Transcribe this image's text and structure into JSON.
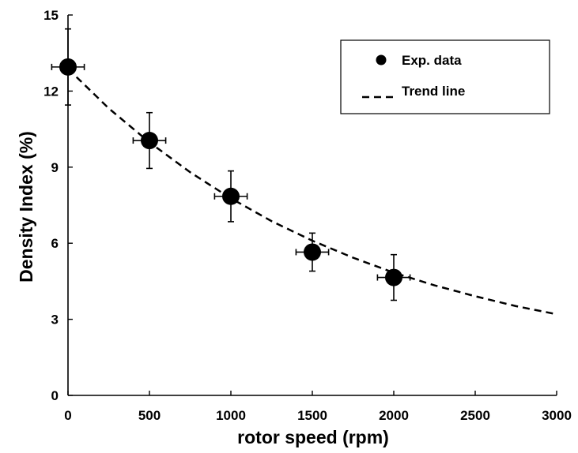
{
  "chart_data": {
    "type": "scatter",
    "title": "",
    "xlabel": "rotor speed (rpm)",
    "ylabel": "Density Index (%)",
    "xlim": [
      0,
      3000
    ],
    "ylim": [
      0,
      15
    ],
    "x_ticks": [
      "0",
      "500",
      "1000",
      "1500",
      "2000",
      "2500",
      "3000"
    ],
    "y_ticks": [
      "0",
      "3",
      "6",
      "9",
      "12",
      "15"
    ],
    "grid": false,
    "legend": {
      "placement": "top-right",
      "entries": [
        "Exp. data",
        "Trend line"
      ]
    },
    "series": [
      {
        "name": "Exp. data",
        "kind": "scatter",
        "x": [
          0,
          500,
          1000,
          1500,
          2000
        ],
        "y": [
          12.95,
          10.05,
          7.85,
          5.65,
          4.65
        ],
        "x_error": [
          100,
          100,
          100,
          100,
          100
        ],
        "y_error": [
          1.5,
          1.1,
          1.0,
          0.75,
          0.9
        ]
      },
      {
        "name": "Trend line",
        "kind": "line",
        "style": "dashed",
        "x": [
          0,
          250,
          500,
          750,
          1000,
          1250,
          1500,
          1750,
          2000,
          2250,
          2500,
          2750,
          3000
        ],
        "y": [
          12.88,
          11.32,
          9.98,
          8.8,
          7.77,
          6.87,
          6.1,
          5.43,
          4.84,
          4.34,
          3.91,
          3.52,
          3.2
        ]
      }
    ],
    "colors": {
      "axis": "#000000",
      "points": "#000000",
      "trend": "#000000",
      "background": "#ffffff"
    }
  }
}
